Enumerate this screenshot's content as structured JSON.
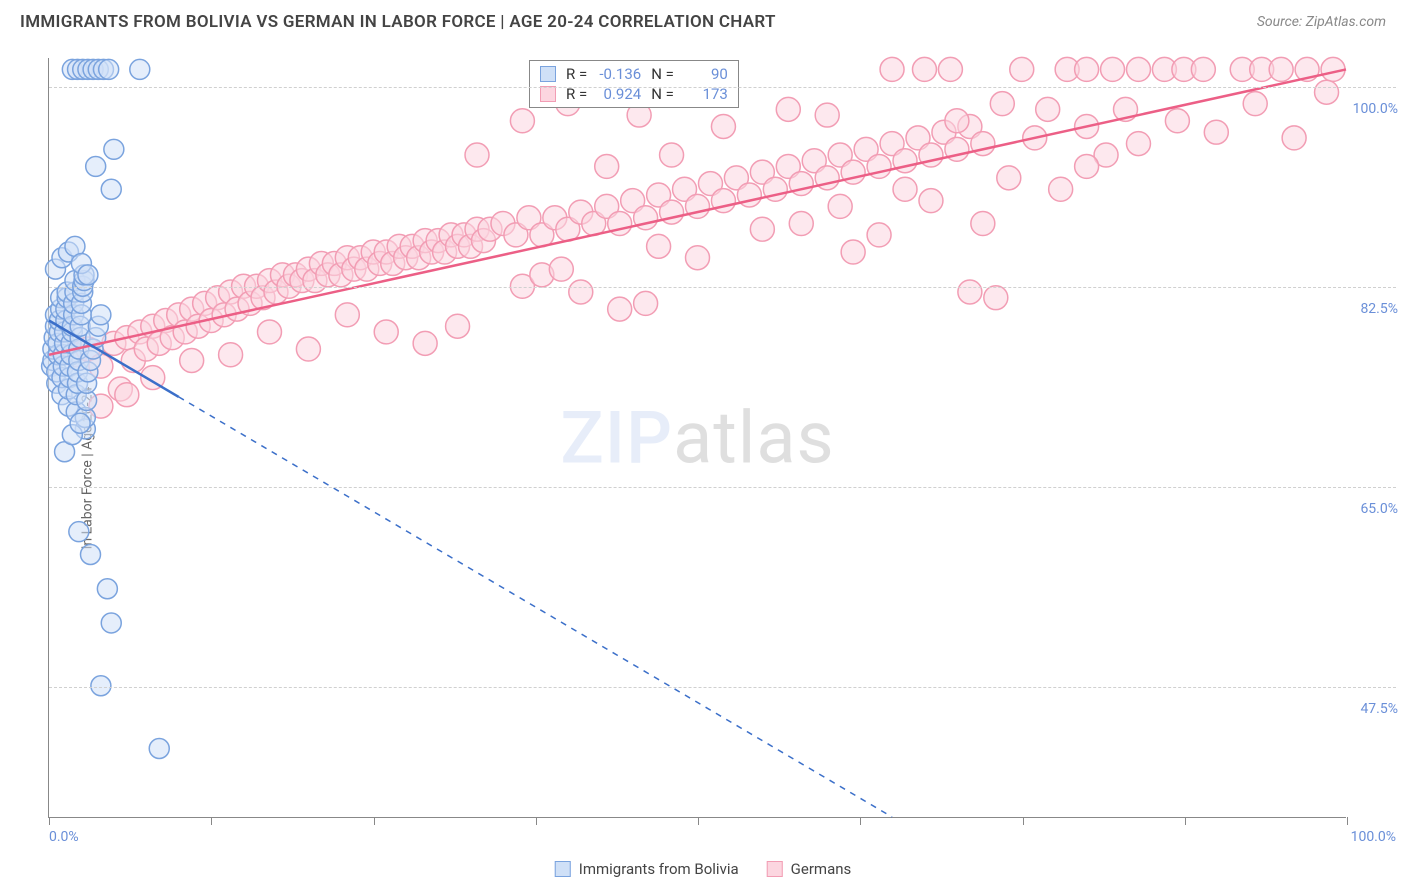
{
  "header": {
    "title": "IMMIGRANTS FROM BOLIVIA VS GERMAN IN LABOR FORCE | AGE 20-24 CORRELATION CHART",
    "source_label": "Source: ZipAtlas.com"
  },
  "axes": {
    "y_label": "In Labor Force | Age 20-24",
    "x_min_label": "0.0%",
    "x_max_label": "100.0%",
    "xlim": [
      0,
      100
    ],
    "ylim": [
      36,
      102.5
    ],
    "y_ticks": [
      {
        "value": 47.5,
        "label": "47.5%"
      },
      {
        "value": 65.0,
        "label": "65.0%"
      },
      {
        "value": 82.5,
        "label": "82.5%"
      },
      {
        "value": 100.0,
        "label": "100.0%"
      }
    ],
    "x_tick_positions": [
      0,
      12.5,
      25,
      37.5,
      50,
      62.5,
      75,
      87.5,
      100
    ],
    "grid_color": "#d0d0d0"
  },
  "watermark": {
    "zip": "ZIP",
    "atlas": "atlas"
  },
  "legend_bottom": {
    "series_a_label": "Immigrants from Bolivia",
    "series_b_label": "Germans"
  },
  "stat_legend": {
    "r_label": "R =",
    "n_label": "N =",
    "series_a": {
      "r": "-0.136",
      "n": "90"
    },
    "series_b": {
      "r": "0.924",
      "n": "173"
    }
  },
  "series_a": {
    "name": "Immigrants from Bolivia",
    "fill": "#cfe0f7",
    "stroke": "#7aa3de",
    "line_color": "#3b6fc9",
    "marker_radius": 10,
    "marker_opacity": 0.55,
    "trend_solid_xmax": 10,
    "trend": {
      "x1": 0,
      "y1": 79.5,
      "x2": 65,
      "y2": 36
    },
    "points": [
      [
        0.2,
        75.5
      ],
      [
        0.3,
        76.0
      ],
      [
        0.3,
        77.0
      ],
      [
        0.4,
        78.0
      ],
      [
        0.5,
        79.0
      ],
      [
        0.5,
        80.0
      ],
      [
        0.6,
        74.0
      ],
      [
        0.6,
        75.0
      ],
      [
        0.7,
        76.5
      ],
      [
        0.7,
        77.5
      ],
      [
        0.8,
        78.5
      ],
      [
        0.8,
        79.5
      ],
      [
        0.9,
        80.5
      ],
      [
        0.9,
        81.5
      ],
      [
        1.0,
        73.0
      ],
      [
        1.0,
        74.5
      ],
      [
        1.1,
        75.5
      ],
      [
        1.1,
        76.5
      ],
      [
        1.2,
        77.5
      ],
      [
        1.2,
        78.5
      ],
      [
        1.3,
        79.5
      ],
      [
        1.3,
        80.5
      ],
      [
        1.4,
        81.5
      ],
      [
        1.4,
        82.0
      ],
      [
        1.5,
        72.0
      ],
      [
        1.5,
        73.5
      ],
      [
        1.6,
        74.5
      ],
      [
        1.6,
        75.5
      ],
      [
        1.7,
        76.5
      ],
      [
        1.7,
        77.5
      ],
      [
        1.8,
        78.5
      ],
      [
        1.8,
        79.0
      ],
      [
        1.9,
        80.0
      ],
      [
        1.9,
        81.0
      ],
      [
        2.0,
        82.0
      ],
      [
        2.0,
        83.0
      ],
      [
        2.1,
        71.5
      ],
      [
        2.1,
        73.0
      ],
      [
        2.2,
        74.0
      ],
      [
        2.2,
        75.0
      ],
      [
        2.3,
        76.0
      ],
      [
        2.3,
        77.0
      ],
      [
        2.4,
        78.0
      ],
      [
        2.4,
        79.0
      ],
      [
        2.5,
        80.0
      ],
      [
        2.5,
        81.0
      ],
      [
        2.6,
        82.0
      ],
      [
        2.6,
        82.5
      ],
      [
        2.7,
        83.0
      ],
      [
        2.7,
        83.5
      ],
      [
        2.8,
        70.0
      ],
      [
        2.8,
        71.0
      ],
      [
        2.9,
        72.5
      ],
      [
        2.9,
        74.0
      ],
      [
        3.0,
        75.0
      ],
      [
        3.2,
        76.0
      ],
      [
        3.4,
        77.0
      ],
      [
        3.6,
        78.0
      ],
      [
        3.8,
        79.0
      ],
      [
        4.0,
        80.0
      ],
      [
        0.5,
        84.0
      ],
      [
        1.0,
        85.0
      ],
      [
        1.5,
        85.5
      ],
      [
        2.0,
        86.0
      ],
      [
        2.5,
        84.5
      ],
      [
        3.0,
        83.5
      ],
      [
        1.2,
        68.0
      ],
      [
        1.8,
        69.5
      ],
      [
        2.4,
        70.5
      ],
      [
        1.8,
        101.5
      ],
      [
        2.2,
        101.5
      ],
      [
        2.6,
        101.5
      ],
      [
        3.0,
        101.5
      ],
      [
        3.4,
        101.5
      ],
      [
        3.8,
        101.5
      ],
      [
        4.2,
        101.5
      ],
      [
        4.6,
        101.5
      ],
      [
        7.0,
        101.5
      ],
      [
        3.6,
        93.0
      ],
      [
        4.8,
        91.0
      ],
      [
        5.0,
        94.5
      ],
      [
        2.3,
        61.0
      ],
      [
        3.2,
        59.0
      ],
      [
        4.5,
        56.0
      ],
      [
        4.8,
        53.0
      ],
      [
        4.0,
        47.5
      ],
      [
        8.5,
        42.0
      ]
    ]
  },
  "series_b": {
    "name": "Germans",
    "fill": "#fcd6e0",
    "stroke": "#f29db4",
    "line_color": "#ec5f86",
    "marker_radius": 12,
    "marker_opacity": 0.55,
    "trend": {
      "x1": 0,
      "y1": 76.5,
      "x2": 100,
      "y2": 101.5
    },
    "points": [
      [
        2.0,
        76.5
      ],
      [
        3.0,
        77.0
      ],
      [
        4.0,
        75.5
      ],
      [
        5.0,
        77.5
      ],
      [
        5.5,
        73.5
      ],
      [
        6.0,
        78.0
      ],
      [
        6.5,
        76.0
      ],
      [
        7.0,
        78.5
      ],
      [
        7.5,
        77.0
      ],
      [
        8.0,
        79.0
      ],
      [
        8.5,
        77.5
      ],
      [
        9.0,
        79.5
      ],
      [
        9.5,
        78.0
      ],
      [
        10.0,
        80.0
      ],
      [
        10.5,
        78.5
      ],
      [
        11.0,
        80.5
      ],
      [
        11.5,
        79.0
      ],
      [
        12.0,
        81.0
      ],
      [
        12.5,
        79.5
      ],
      [
        13.0,
        81.5
      ],
      [
        13.5,
        80.0
      ],
      [
        14.0,
        82.0
      ],
      [
        14.5,
        80.5
      ],
      [
        15.0,
        82.5
      ],
      [
        15.5,
        81.0
      ],
      [
        16.0,
        82.5
      ],
      [
        16.5,
        81.5
      ],
      [
        17.0,
        83.0
      ],
      [
        17.5,
        82.0
      ],
      [
        18.0,
        83.5
      ],
      [
        18.5,
        82.5
      ],
      [
        19.0,
        83.5
      ],
      [
        19.5,
        83.0
      ],
      [
        20.0,
        84.0
      ],
      [
        20.5,
        83.0
      ],
      [
        21.0,
        84.5
      ],
      [
        21.5,
        83.5
      ],
      [
        22.0,
        84.5
      ],
      [
        22.5,
        83.5
      ],
      [
        23.0,
        85.0
      ],
      [
        23.5,
        84.0
      ],
      [
        24.0,
        85.0
      ],
      [
        24.5,
        84.0
      ],
      [
        25.0,
        85.5
      ],
      [
        25.5,
        84.5
      ],
      [
        26.0,
        85.5
      ],
      [
        26.5,
        84.5
      ],
      [
        27.0,
        86.0
      ],
      [
        27.5,
        85.0
      ],
      [
        28.0,
        86.0
      ],
      [
        28.5,
        85.0
      ],
      [
        29.0,
        86.5
      ],
      [
        29.5,
        85.5
      ],
      [
        30.0,
        86.5
      ],
      [
        30.5,
        85.5
      ],
      [
        31.0,
        87.0
      ],
      [
        31.5,
        86.0
      ],
      [
        32.0,
        87.0
      ],
      [
        32.5,
        86.0
      ],
      [
        33.0,
        87.5
      ],
      [
        33.5,
        86.5
      ],
      [
        34.0,
        87.5
      ],
      [
        35.0,
        88.0
      ],
      [
        36.0,
        87.0
      ],
      [
        37.0,
        88.5
      ],
      [
        38.0,
        87.0
      ],
      [
        39.0,
        88.5
      ],
      [
        40.0,
        87.5
      ],
      [
        41.0,
        89.0
      ],
      [
        42.0,
        88.0
      ],
      [
        43.0,
        89.5
      ],
      [
        44.0,
        88.0
      ],
      [
        45.0,
        90.0
      ],
      [
        46.0,
        88.5
      ],
      [
        47.0,
        90.5
      ],
      [
        48.0,
        89.0
      ],
      [
        49.0,
        91.0
      ],
      [
        50.0,
        89.5
      ],
      [
        51.0,
        91.5
      ],
      [
        52.0,
        90.0
      ],
      [
        53.0,
        92.0
      ],
      [
        54.0,
        90.5
      ],
      [
        55.0,
        92.5
      ],
      [
        56.0,
        91.0
      ],
      [
        57.0,
        93.0
      ],
      [
        58.0,
        91.5
      ],
      [
        59.0,
        93.5
      ],
      [
        60.0,
        92.0
      ],
      [
        61.0,
        94.0
      ],
      [
        62.0,
        92.5
      ],
      [
        63.0,
        94.5
      ],
      [
        64.0,
        93.0
      ],
      [
        65.0,
        95.0
      ],
      [
        66.0,
        93.5
      ],
      [
        67.0,
        95.5
      ],
      [
        68.0,
        94.0
      ],
      [
        69.0,
        96.0
      ],
      [
        70.0,
        94.5
      ],
      [
        71.0,
        96.5
      ],
      [
        72.0,
        95.0
      ],
      [
        36.5,
        82.5
      ],
      [
        38.0,
        83.5
      ],
      [
        39.5,
        84.0
      ],
      [
        41.0,
        82.0
      ],
      [
        43.0,
        93.0
      ],
      [
        48.0,
        94.0
      ],
      [
        52.0,
        96.5
      ],
      [
        47.0,
        86.0
      ],
      [
        50.0,
        85.0
      ],
      [
        55.0,
        87.5
      ],
      [
        58.0,
        88.0
      ],
      [
        61.0,
        89.5
      ],
      [
        62.0,
        85.5
      ],
      [
        64.0,
        87.0
      ],
      [
        66.0,
        91.0
      ],
      [
        68.0,
        90.0
      ],
      [
        70.0,
        97.0
      ],
      [
        72.0,
        88.0
      ],
      [
        74.0,
        92.0
      ],
      [
        76.0,
        95.5
      ],
      [
        78.0,
        91.0
      ],
      [
        80.0,
        96.5
      ],
      [
        81.5,
        94.0
      ],
      [
        83.0,
        98.0
      ],
      [
        71.0,
        82.0
      ],
      [
        73.0,
        81.5
      ],
      [
        44.0,
        80.5
      ],
      [
        46.0,
        81.0
      ],
      [
        33.0,
        94.0
      ],
      [
        36.5,
        97.0
      ],
      [
        40.0,
        98.5
      ],
      [
        29.0,
        77.5
      ],
      [
        31.5,
        79.0
      ],
      [
        65.0,
        101.5
      ],
      [
        67.5,
        101.5
      ],
      [
        69.5,
        101.5
      ],
      [
        75.0,
        101.5
      ],
      [
        78.5,
        101.5
      ],
      [
        80.0,
        101.5
      ],
      [
        82.0,
        101.5
      ],
      [
        84.0,
        101.5
      ],
      [
        86.0,
        101.5
      ],
      [
        87.5,
        101.5
      ],
      [
        89.0,
        101.5
      ],
      [
        92.0,
        101.5
      ],
      [
        93.5,
        101.5
      ],
      [
        95.0,
        101.5
      ],
      [
        97.0,
        101.5
      ],
      [
        99.0,
        101.5
      ],
      [
        73.5,
        98.5
      ],
      [
        77.0,
        98.0
      ],
      [
        80.0,
        93.0
      ],
      [
        84.0,
        95.0
      ],
      [
        87.0,
        97.0
      ],
      [
        90.0,
        96.0
      ],
      [
        93.0,
        98.5
      ],
      [
        96.0,
        95.5
      ],
      [
        98.5,
        99.5
      ],
      [
        57.0,
        98.0
      ],
      [
        60.0,
        97.5
      ],
      [
        45.5,
        97.5
      ],
      [
        26.0,
        78.5
      ],
      [
        23.0,
        80.0
      ],
      [
        20.0,
        77.0
      ],
      [
        17.0,
        78.5
      ],
      [
        14.0,
        76.5
      ],
      [
        11.0,
        76.0
      ],
      [
        8.0,
        74.5
      ],
      [
        6.0,
        73.0
      ],
      [
        4.0,
        72.0
      ]
    ]
  }
}
